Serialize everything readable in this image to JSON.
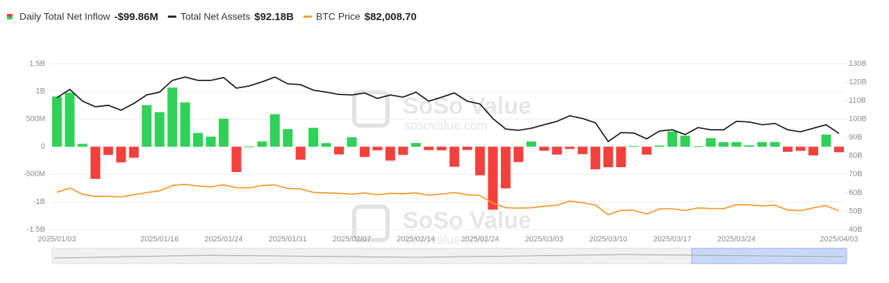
{
  "chart_data": {
    "type": "bar",
    "categories": [
      "2025/01/03",
      null,
      null,
      null,
      null,
      null,
      null,
      null,
      "2025/01/16",
      null,
      null,
      null,
      null,
      "2025/01/24",
      null,
      null,
      null,
      null,
      "2025/01/31",
      null,
      null,
      null,
      null,
      "2025/02/07",
      null,
      null,
      null,
      null,
      "2025/02/14",
      null,
      null,
      null,
      null,
      "2025/02/24",
      null,
      null,
      null,
      null,
      "2025/03/03",
      null,
      null,
      null,
      null,
      "2025/03/10",
      null,
      null,
      null,
      null,
      "2025/03/17",
      null,
      null,
      null,
      null,
      "2025/03/24",
      null,
      null,
      null,
      null,
      null,
      null,
      null,
      "2025/04/03"
    ],
    "series": [
      {
        "name": "Daily Total Net Inflow",
        "type": "bar",
        "legend_value": "-$99.86M",
        "colors": {
          "positive": "#2fd158",
          "negative": "#f2413d"
        },
        "values": [
          908,
          978,
          52,
          -582,
          -149,
          -284,
          -200,
          753,
          626,
          1070,
          802,
          249,
          182,
          507,
          -458,
          3,
          95,
          588,
          318,
          -235,
          341,
          66,
          -140,
          171,
          -186,
          -65,
          -251,
          -150,
          67,
          -61,
          -65,
          -364,
          -60,
          -517,
          -1140,
          -754,
          -278,
          94,
          -74,
          -143,
          -40,
          -135,
          -409,
          -371,
          -370,
          13,
          -143,
          22,
          275,
          199,
          5,
          155,
          83,
          84,
          25,
          84,
          85,
          -93,
          -75,
          -158,
          220,
          -99.86
        ]
      },
      {
        "name": "Total Net Assets",
        "type": "line",
        "axis": "y2",
        "color": "#1c1c1c",
        "legend_value": "$92.18B",
        "values": [
          111.6,
          116.1,
          109.7,
          106.7,
          107.5,
          104.8,
          108.5,
          113.1,
          114.6,
          121.0,
          122.8,
          121.0,
          121.0,
          122.5,
          116.8,
          118.0,
          120.2,
          122.8,
          119.1,
          118.7,
          115.7,
          114.6,
          113.4,
          113.1,
          114.2,
          111.2,
          113.1,
          111.9,
          114.6,
          109.7,
          111.9,
          114.2,
          109.7,
          108.2,
          100.3,
          94.6,
          93.9,
          95.0,
          96.9,
          98.8,
          101.8,
          100.3,
          98.0,
          87.8,
          92.7,
          92.4,
          89.3,
          93.5,
          94.2,
          91.6,
          95.4,
          94.2,
          94.2,
          98.8,
          98.4,
          96.9,
          97.6,
          94.2,
          93.1,
          95.0,
          96.9,
          92.18
        ]
      },
      {
        "name": "BTC Price",
        "type": "line",
        "axis": "y3",
        "color": "#f39a2b",
        "legend_value": "$82,008.70",
        "values": [
          98200,
          101800,
          96400,
          94500,
          94700,
          94100,
          96000,
          97900,
          99300,
          104000,
          105000,
          103600,
          102800,
          104500,
          102100,
          102000,
          104000,
          104500,
          101400,
          101000,
          98000,
          97500,
          97200,
          96500,
          97500,
          95900,
          97300,
          96900,
          97500,
          95600,
          96500,
          97900,
          96000,
          95200,
          88700,
          84700,
          84400,
          84600,
          86000,
          86800,
          90500,
          89000,
          87000,
          78600,
          82500,
          82400,
          79200,
          83700,
          83700,
          82300,
          84500,
          84000,
          83900,
          87400,
          87200,
          86200,
          86900,
          82700,
          82200,
          84600,
          86500,
          82008.7
        ]
      }
    ],
    "ylim": [
      -1500,
      1500
    ],
    "yticks": [
      {
        "value": -1500,
        "label": "-1.5B"
      },
      {
        "value": -1000,
        "label": "-1B"
      },
      {
        "value": -500,
        "label": "-500M"
      },
      0,
      {
        "value": 500,
        "label": "500M"
      },
      {
        "value": 1000,
        "label": "1B"
      },
      {
        "value": 1500,
        "label": "1.5B"
      }
    ],
    "y2lim": [
      40,
      130
    ],
    "y2ticks": [
      {
        "value": 40,
        "label": "40B"
      },
      {
        "value": 50,
        "label": "50B"
      },
      {
        "value": 60,
        "label": "60B"
      },
      {
        "value": 70,
        "label": "70B"
      },
      {
        "value": 80,
        "label": "80B"
      },
      {
        "value": 90,
        "label": "90B"
      },
      {
        "value": 100,
        "label": "100B"
      },
      {
        "value": 110,
        "label": "110B"
      },
      {
        "value": 120,
        "label": "120B"
      },
      {
        "value": 130,
        "label": "130B"
      }
    ],
    "y3lim": [
      65700,
      209700
    ],
    "grid": true,
    "watermark": {
      "brand": "SoSo Value",
      "url": "sosovalue.com"
    }
  }
}
